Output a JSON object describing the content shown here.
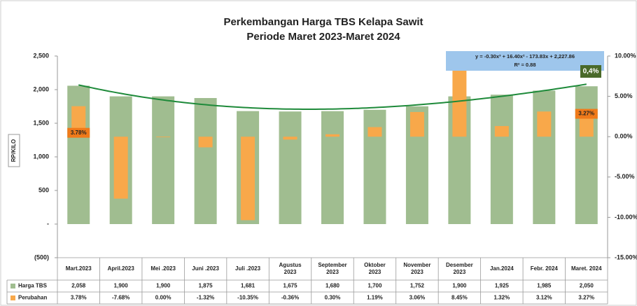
{
  "chart_data": {
    "type": "bar",
    "title": "Perkembangan Harga TBS Kelapa Sawit",
    "subtitle": "Periode Maret 2023-Maret 2024",
    "y_label": "RP/KILO",
    "categories": [
      "Mart.2023",
      "April.2023",
      "Mei .2023",
      "Juni .2023",
      "Juli .2023",
      "Agustus\n2023",
      "September\n2023",
      "Oktober\n2023",
      "November\n2023",
      "Desember\n2023",
      "Jan.2024",
      "Febr. 2024",
      "Maret. 2024"
    ],
    "series": [
      {
        "name": "Harga TBS",
        "color": "#a0bd90",
        "values": [
          2058,
          1900,
          1900,
          1875,
          1681,
          1675,
          1680,
          1700,
          1752,
          1900,
          1925,
          1985,
          2050
        ],
        "value_labels": [
          "2,058",
          "1,900",
          "1,900",
          "1,875",
          "1,681",
          "1,675",
          "1,680",
          "1,700",
          "1,752",
          "1,900",
          "1,925",
          "1,985",
          "2,050"
        ]
      },
      {
        "name": "Perubahan",
        "color": "#f8a84a",
        "axis": "y2",
        "values": [
          3.78,
          -7.68,
          0.0,
          -1.32,
          -10.35,
          -0.36,
          0.3,
          1.19,
          3.06,
          8.45,
          1.32,
          3.12,
          3.27
        ],
        "value_labels": [
          "3.78%",
          "-7.68%",
          "0.00%",
          "-1.32%",
          "-10.35%",
          "-0.36%",
          "0.30%",
          "1.19%",
          "3.06%",
          "8.45%",
          "1.32%",
          "3.12%",
          "3.27%"
        ]
      }
    ],
    "trendline": {
      "equation": "y = -0.30x³ + 16.40x² - 173.83x + 2,227.86",
      "r_squared": "R² = 0.88",
      "coefficients": [
        -0.3,
        16.4,
        -173.83,
        2227.86
      ],
      "color": "#1e8a3a"
    },
    "annotation": "0,4%",
    "ylim": [
      -500,
      2500
    ],
    "yticks": [
      {
        "value": -500,
        "label": "(500)"
      },
      {
        "value": 0,
        "label": "-"
      },
      500,
      {
        "value": 1000,
        "label": "1,000"
      },
      {
        "value": 1500,
        "label": "1,500"
      },
      {
        "value": 2000,
        "label": "2,000"
      },
      {
        "value": 2500,
        "label": "2,500"
      }
    ],
    "y2lim": [
      -15,
      10
    ],
    "y2ticks": [
      {
        "value": -15,
        "label": "-15.00%"
      },
      {
        "value": -10,
        "label": "-10.00%"
      },
      {
        "value": -5,
        "label": "-5.00%"
      },
      {
        "value": 0,
        "label": "0.00%"
      },
      {
        "value": 5,
        "label": "5.00%"
      },
      {
        "value": 10,
        "label": "10.00%"
      }
    ]
  }
}
